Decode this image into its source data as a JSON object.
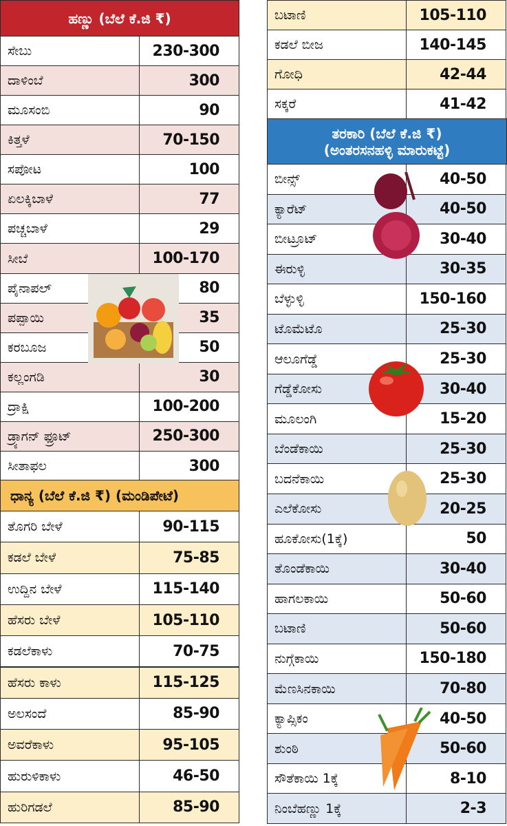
{
  "fruits": {
    "title": "ಹಣ್ಣು (ಬೆಲೆ ಕೆ.ಜಿ ₹)",
    "rows": [
      [
        "ಸೇಬು",
        "230-300"
      ],
      [
        "ದಾಳಿಂಬೆ",
        "300"
      ],
      [
        "ಮೂಸಂಬಿ",
        "90"
      ],
      [
        "ಕಿತ್ತಳೆ",
        "70-150"
      ],
      [
        "ಸಪೋಟ",
        "100"
      ],
      [
        "ಏಲಕ್ಕಿಬಾಳೆ",
        "77"
      ],
      [
        "ಪಚ್ಚಬಾಳೆ",
        "29"
      ],
      [
        "ಸೀಬೆ",
        "100-170"
      ],
      [
        "ಪೈನಾಪಲ್",
        "80"
      ],
      [
        "ಪಪ್ಪಾಯಿ",
        "35"
      ],
      [
        "ಕರಬೂಜ",
        "50"
      ],
      [
        "ಕಲ್ಲಂಗಡಿ",
        "30"
      ],
      [
        "ದ್ರಾಕ್ಷಿ",
        "100-200"
      ],
      [
        "ಡ್ರ್ಯಾಗನ್ ಫ್ರೂಟ್",
        "250-300"
      ],
      [
        "ಸೀತಾಫಲ",
        "300"
      ]
    ]
  },
  "grains": {
    "title": "ಧಾನ್ಯ (ಬೆಲೆ ಕೆ.ಜಿ ₹) (ಮಂಡಿಪೇಟೆ)",
    "rows": [
      [
        "ತೊಗರಿ ಬೇಳೆ",
        "90-115"
      ],
      [
        "ಕಡಲೆ ಬೇಳೆ",
        "75-85"
      ],
      [
        "ಉದ್ದಿನ ಬೇಳೆ",
        "115-140"
      ],
      [
        "ಹೆಸರು ಬೇಳೆ",
        "105-110"
      ],
      [
        "ಕಡಲೆಕಾಳು",
        "70-75"
      ],
      [
        "ಹೆಸರು ಕಾಳು",
        "115-125"
      ],
      [
        "ಅಲಸಂದೆ",
        "85-90"
      ],
      [
        "ಅವರೆಕಾಳು",
        "95-105"
      ],
      [
        "ಹುರುಳಿಕಾಳು",
        "46-50"
      ],
      [
        "ಹುರಿಗಡಲೆ",
        "85-90"
      ],
      [
        "ಬಟಾಣಿ",
        "105-110"
      ],
      [
        "ಕಡಲೆ ಬೀಜ",
        "140-145"
      ],
      [
        "ಗೋಧಿ",
        "42-44"
      ],
      [
        "ಸಕ್ಕರೆ",
        "41-42"
      ]
    ]
  },
  "vegetables": {
    "title": [
      "ತರಕಾರಿ (ಬೆಲೆ ಕೆ.ಜಿ ₹)",
      "(ಅಂತರಸನಹಳ್ಳಿ ಮಾರುಕಟ್ಟೆ)"
    ],
    "rows": [
      [
        "ಬೀನ್ಸ್",
        "40-50"
      ],
      [
        "ಕ್ಯಾರೆಟ್",
        "40-50"
      ],
      [
        "ಬೀಟ್ರೂಟ್",
        "30-40"
      ],
      [
        "ಈರುಳ್ಳಿ",
        "30-35"
      ],
      [
        "ಬೆಳ್ಳುಳ್ಳಿ",
        "150-160"
      ],
      [
        "ಟೊಮೆಟೊ",
        "25-30"
      ],
      [
        "ಆಲೂಗೆಡ್ಡೆ",
        "25-30"
      ],
      [
        "ಗೆಡ್ಡೆಕೋಸು",
        "30-40"
      ],
      [
        "ಮೂಲಂಗಿ",
        "15-20"
      ],
      [
        "ಬೆಂಡೆಕಾಯಿ",
        "25-30"
      ],
      [
        "ಬದನೆಕಾಯಿ",
        "25-30"
      ],
      [
        "ಎಲೆಕೋಸು",
        "20-25"
      ],
      [
        "ಹೂಕೋಸು(1ಕ್ಕೆ)",
        "50"
      ],
      [
        "ತೊಂಡೆಕಾಯಿ",
        "30-40"
      ],
      [
        "ಹಾಗಲಕಾಯಿ",
        "50-60"
      ],
      [
        "ಬಟಾಣಿ",
        "50-60"
      ],
      [
        "ನುಗ್ಗೆಕಾಯಿ",
        "150-180"
      ],
      [
        "ಮೆಣಸಿನಕಾಯಿ",
        "70-80"
      ],
      [
        "ಕ್ಯಾಪ್ಸಿಕಂ",
        "40-50"
      ],
      [
        "ಶುಂಠಿ",
        "50-60"
      ],
      [
        "ಸೌತೆಕಾಯಿ 1ಕ್ಕೆ",
        "8-10"
      ],
      [
        "ನಿಂಬೆಹಣ್ಣು 1ಕ್ಕೆ",
        "2-3"
      ]
    ]
  }
}
